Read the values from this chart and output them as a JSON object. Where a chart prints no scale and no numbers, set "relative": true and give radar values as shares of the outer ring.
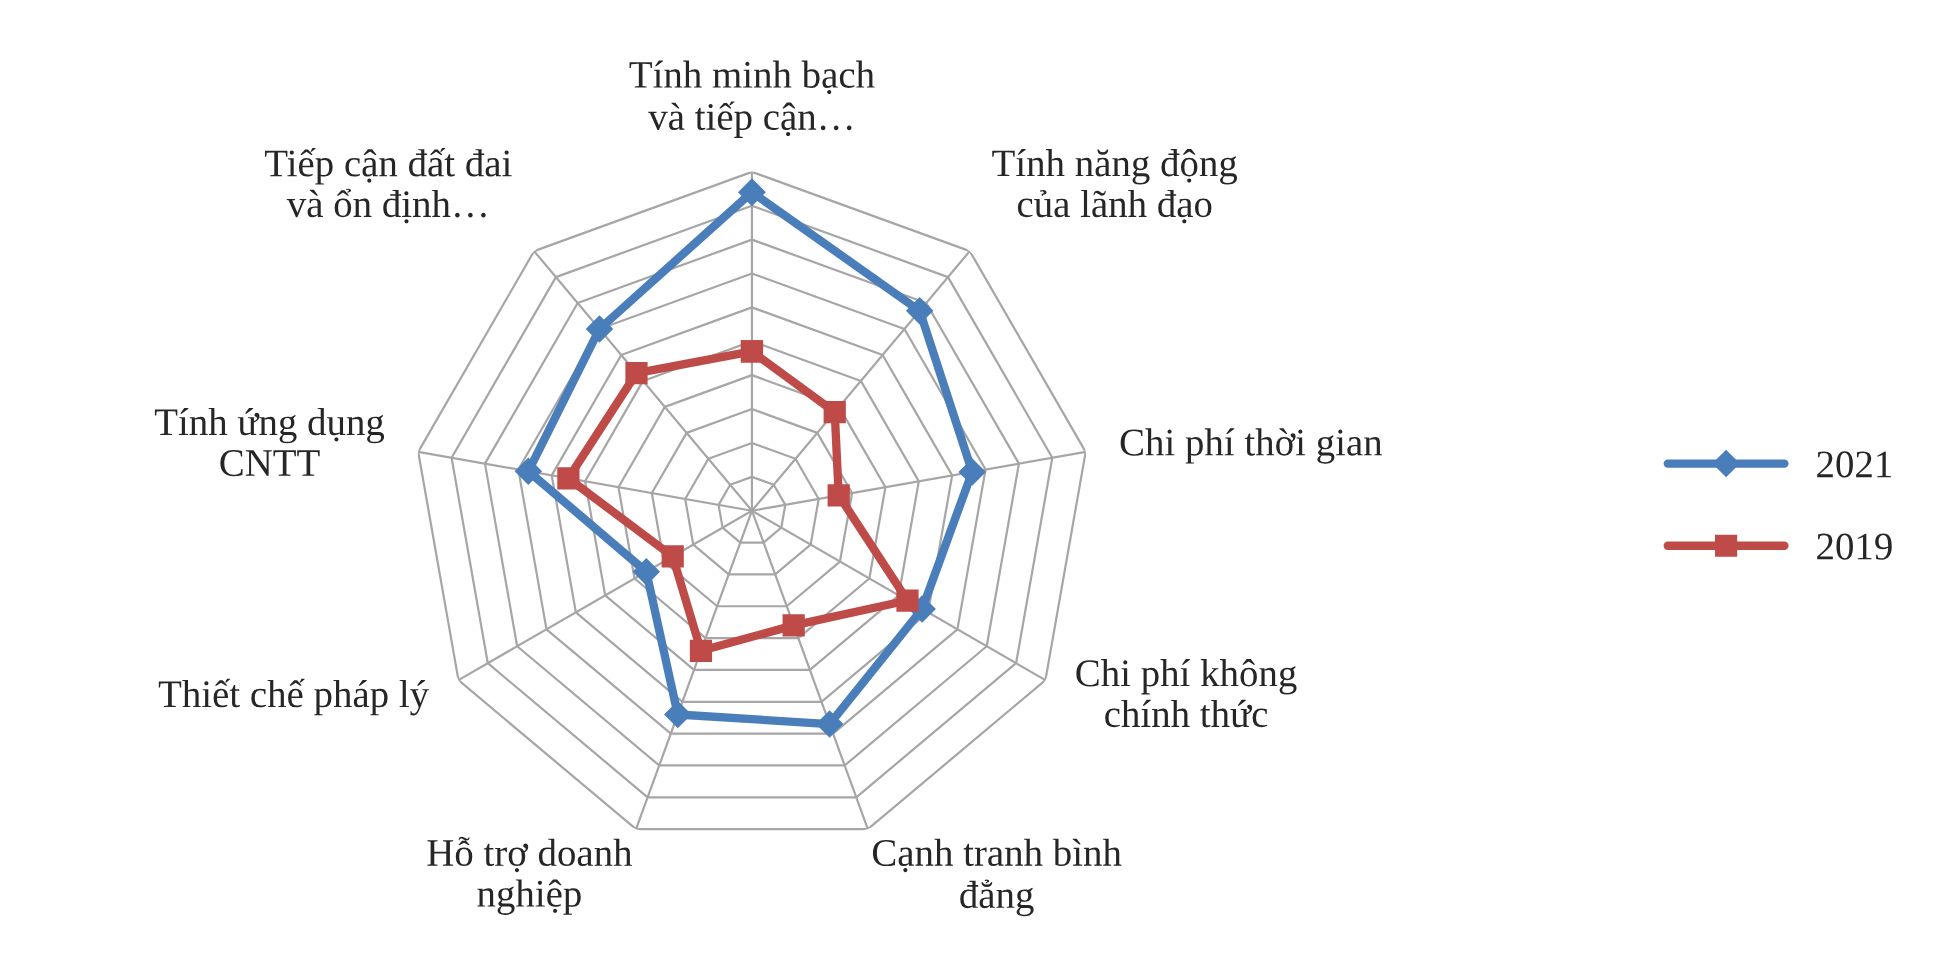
{
  "chart_data": {
    "type": "radar",
    "relative": true,
    "grid": true,
    "legend": "right",
    "categories": [
      "Tính minh bạch\nvà tiếp cận…",
      "Tính năng động\ncủa lãnh đạo",
      "Chi phí thời gian",
      "Chi phí không\nchính thức",
      "Cạnh tranh bình\nđẳng",
      "Hỗ trợ doanh\nnghiệp",
      "Thiết chế pháp lý",
      "Tính ứng dụng\nCNTT",
      "Tiếp cận đất đai\nvà ổn định…"
    ],
    "series": [
      {
        "name": "2021",
        "color": "#4a7ebb",
        "marker": "diamond",
        "values": [
          0.94,
          0.77,
          0.66,
          0.58,
          0.67,
          0.64,
          0.36,
          0.67,
          0.7
        ]
      },
      {
        "name": "2019",
        "color": "#be4b48",
        "marker": "square",
        "values": [
          0.47,
          0.38,
          0.26,
          0.53,
          0.36,
          0.44,
          0.27,
          0.55,
          0.53
        ]
      }
    ]
  }
}
